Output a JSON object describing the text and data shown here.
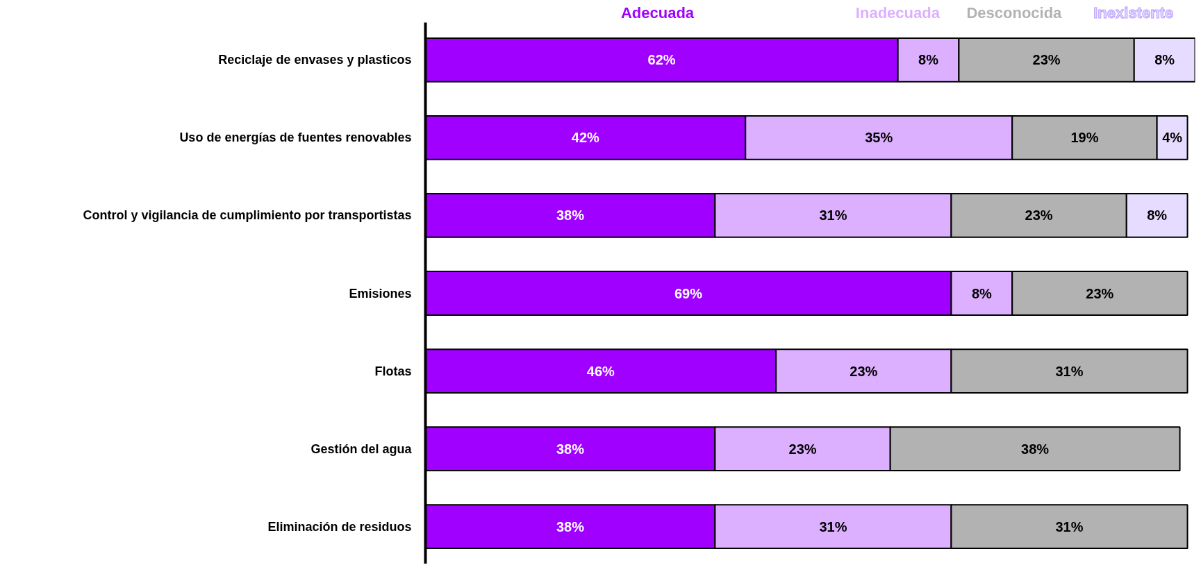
{
  "chart_data": {
    "type": "bar",
    "orientation": "horizontal",
    "stacked": true,
    "legend": "top",
    "tick_labels": "y",
    "categories": [
      "Reciclaje de envases y plasticos",
      "Uso de energías de fuentes renovables",
      "Control y vigilancia de cumplimiento por transportistas",
      "Emisiones",
      "Flotas",
      "Gestión del agua",
      "Eliminación de residuos"
    ],
    "series": [
      {
        "name": "Adecuada",
        "color": "#9f00ff",
        "values": [
          62,
          42,
          38,
          69,
          46,
          38,
          38
        ],
        "value_labels": [
          "62%",
          "42%",
          "38%",
          "69%",
          "46%",
          "38%",
          "38%"
        ]
      },
      {
        "name": "Inadecuada",
        "color": "#dcb0ff",
        "values": [
          8,
          35,
          31,
          8,
          23,
          23,
          31
        ],
        "value_labels": [
          "8%",
          "35%",
          "31%",
          "8%",
          "23%",
          "23%",
          "31%"
        ]
      },
      {
        "name": "Desconocida",
        "color": "#b2b2b2",
        "values": [
          23,
          19,
          23,
          23,
          31,
          38,
          31
        ],
        "value_labels": [
          "23%",
          "19%",
          "23%",
          "23%",
          "31%",
          "38%",
          "31%"
        ]
      },
      {
        "name": "Inexistente",
        "color": "#e6dcff",
        "values": [
          8,
          4,
          8,
          null,
          null,
          null,
          null
        ],
        "value_labels": [
          "8%",
          "4%",
          "8%",
          null,
          null,
          null,
          null
        ]
      }
    ]
  }
}
